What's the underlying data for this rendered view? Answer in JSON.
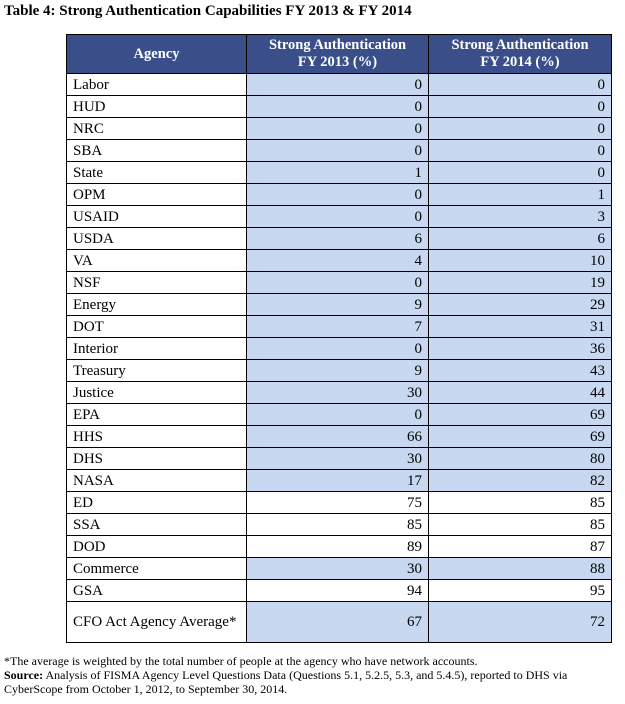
{
  "caption": "Table 4:  Strong Authentication Capabilities FY 2013 & FY 2014",
  "table": {
    "headers": {
      "agency": "Agency",
      "fy2013_line1": "Strong Authentication",
      "fy2013_line2": "FY 2013 (%)",
      "fy2014_line1": "Strong Authentication",
      "fy2014_line2": "FY 2014 (%)"
    },
    "rows": [
      {
        "agency": "Labor",
        "fy2013": "0",
        "fy2014": "0",
        "shaded": true
      },
      {
        "agency": "HUD",
        "fy2013": "0",
        "fy2014": "0",
        "shaded": true
      },
      {
        "agency": "NRC",
        "fy2013": "0",
        "fy2014": "0",
        "shaded": true
      },
      {
        "agency": "SBA",
        "fy2013": "0",
        "fy2014": "0",
        "shaded": true
      },
      {
        "agency": "State",
        "fy2013": "1",
        "fy2014": "0",
        "shaded": true
      },
      {
        "agency": "OPM",
        "fy2013": "0",
        "fy2014": "1",
        "shaded": true
      },
      {
        "agency": "USAID",
        "fy2013": "0",
        "fy2014": "3",
        "shaded": true
      },
      {
        "agency": "USDA",
        "fy2013": "6",
        "fy2014": "6",
        "shaded": true
      },
      {
        "agency": "VA",
        "fy2013": "4",
        "fy2014": "10",
        "shaded": true
      },
      {
        "agency": "NSF",
        "fy2013": "0",
        "fy2014": "19",
        "shaded": true
      },
      {
        "agency": "Energy",
        "fy2013": "9",
        "fy2014": "29",
        "shaded": true
      },
      {
        "agency": "DOT",
        "fy2013": "7",
        "fy2014": "31",
        "shaded": true
      },
      {
        "agency": "Interior",
        "fy2013": "0",
        "fy2014": "36",
        "shaded": true
      },
      {
        "agency": "Treasury",
        "fy2013": "9",
        "fy2014": "43",
        "shaded": true
      },
      {
        "agency": "Justice",
        "fy2013": "30",
        "fy2014": "44",
        "shaded": true
      },
      {
        "agency": "EPA",
        "fy2013": "0",
        "fy2014": "69",
        "shaded": true
      },
      {
        "agency": "HHS",
        "fy2013": "66",
        "fy2014": "69",
        "shaded": true
      },
      {
        "agency": "DHS",
        "fy2013": "30",
        "fy2014": "80",
        "shaded": true
      },
      {
        "agency": "NASA",
        "fy2013": "17",
        "fy2014": "82",
        "shaded": true
      },
      {
        "agency": "ED",
        "fy2013": "75",
        "fy2014": "85",
        "shaded": false
      },
      {
        "agency": "SSA",
        "fy2013": "85",
        "fy2014": "85",
        "shaded": false
      },
      {
        "agency": "DOD",
        "fy2013": "89",
        "fy2014": "87",
        "shaded": false
      },
      {
        "agency": "Commerce",
        "fy2013": "30",
        "fy2014": "88",
        "shaded": true
      },
      {
        "agency": "GSA",
        "fy2013": "94",
        "fy2014": "95",
        "shaded": false
      }
    ],
    "average_row": {
      "agency": "CFO Act Agency Average*",
      "fy2013": "67",
      "fy2014": "72",
      "shaded": true
    }
  },
  "notes": {
    "footnote": "*The average is weighted by the total number of people at the agency who have network accounts.",
    "source_label": "Source:",
    "source_text": " Analysis of FISMA Agency Level Questions Data (Questions 5.1, 5.2.5, 5.3, and 5.4.5), reported to DHS via CyberScope from October 1, 2012, to September 30, 2014."
  },
  "colors": {
    "header_background": "#3a4f8a",
    "shaded_cell": "#c7d8f0"
  }
}
